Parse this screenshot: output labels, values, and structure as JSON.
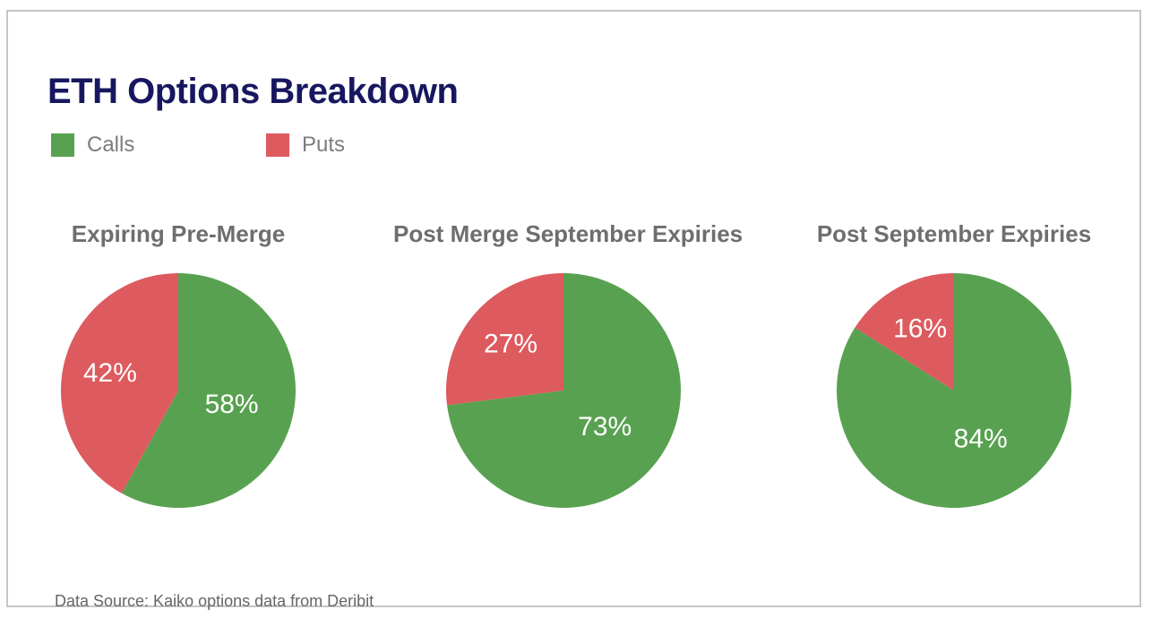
{
  "title": "ETH Options Breakdown",
  "legend": {
    "items": [
      {
        "label": "Calls",
        "color": "#58a150"
      },
      {
        "label": "Puts",
        "color": "#dd5a5e"
      }
    ]
  },
  "footer": {
    "source_note": "Data Source: Kaiko options data from Deribit"
  },
  "colors": {
    "calls_green": "#58a150",
    "puts_red": "#dd5a5e",
    "title_navy": "#171760",
    "subtitle_gray": "#6e6e6e",
    "card_border": "#c6c6c6",
    "label_white": "#ffffff"
  },
  "chart_data": [
    {
      "type": "pie",
      "title": "Expiring Pre-Merge",
      "labels": [
        "Calls",
        "Puts"
      ],
      "values": [
        58,
        42
      ],
      "unit": "%",
      "colors": [
        "#58a150",
        "#dd5a5e"
      ],
      "start_angle_deg": 0,
      "direction": "clockwise",
      "value_labels": [
        "58%",
        "42%"
      ]
    },
    {
      "type": "pie",
      "title": "Post Merge September Expiries",
      "labels": [
        "Calls",
        "Puts"
      ],
      "values": [
        73,
        27
      ],
      "unit": "%",
      "colors": [
        "#58a150",
        "#dd5a5e"
      ],
      "start_angle_deg": 0,
      "direction": "clockwise",
      "value_labels": [
        "73%",
        "27%"
      ]
    },
    {
      "type": "pie",
      "title": "Post September Expiries",
      "labels": [
        "Calls",
        "Puts"
      ],
      "values": [
        84,
        16
      ],
      "unit": "%",
      "colors": [
        "#58a150",
        "#dd5a5e"
      ],
      "start_angle_deg": 0,
      "direction": "clockwise",
      "value_labels": [
        "84%",
        "16%"
      ]
    }
  ]
}
